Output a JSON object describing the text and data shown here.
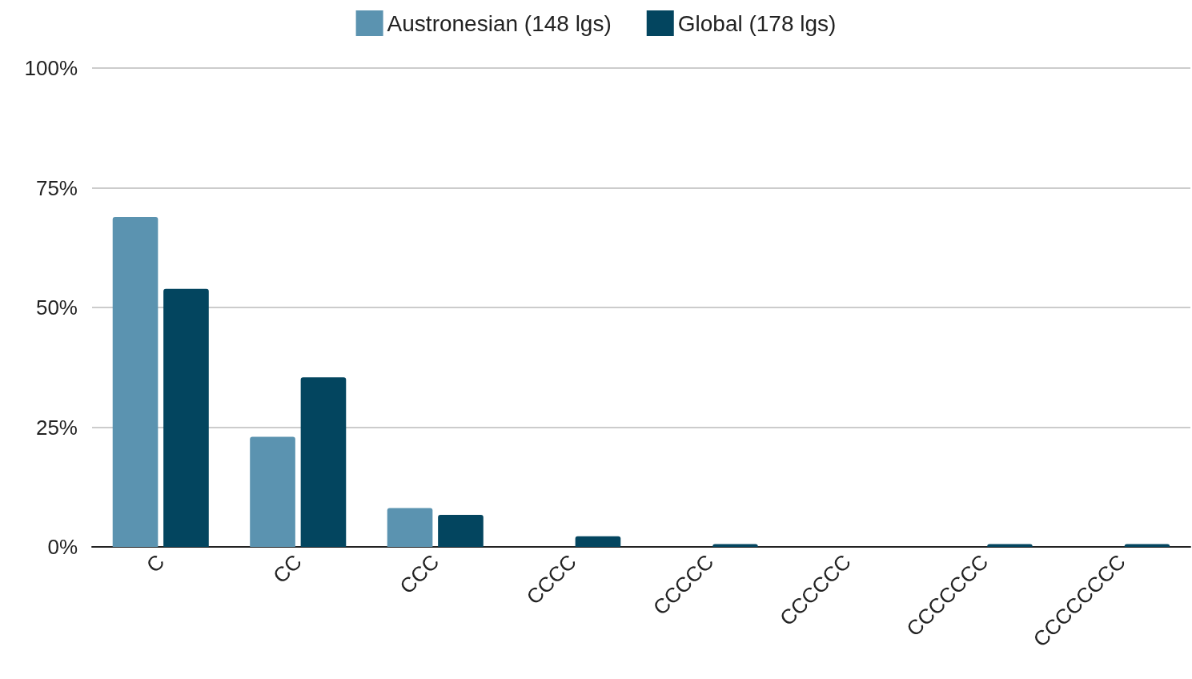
{
  "chart_data": {
    "type": "bar",
    "categories": [
      "C",
      "CC",
      "CCC",
      "CCCC",
      "CCCCC",
      "CCCCCC",
      "CCCCCCC",
      "CCCCCCCC"
    ],
    "series": [
      {
        "name": "Austronesian (148 lgs)",
        "color": "#5b93b0",
        "values": [
          68.9,
          23.0,
          8.1,
          0,
          0,
          0,
          0,
          0
        ]
      },
      {
        "name": "Global (178 lgs)",
        "color": "#03455f",
        "values": [
          53.9,
          35.4,
          6.7,
          2.2,
          0.6,
          0,
          0.6,
          0.6
        ]
      }
    ],
    "ylim": [
      0,
      100
    ],
    "yticks": [
      {
        "value": 0,
        "label": "0%"
      },
      {
        "value": 25,
        "label": "25%"
      },
      {
        "value": 50,
        "label": "50%"
      },
      {
        "value": 75,
        "label": "75%"
      },
      {
        "value": 100,
        "label": "100%"
      }
    ],
    "grid": "y",
    "legend": "top"
  }
}
